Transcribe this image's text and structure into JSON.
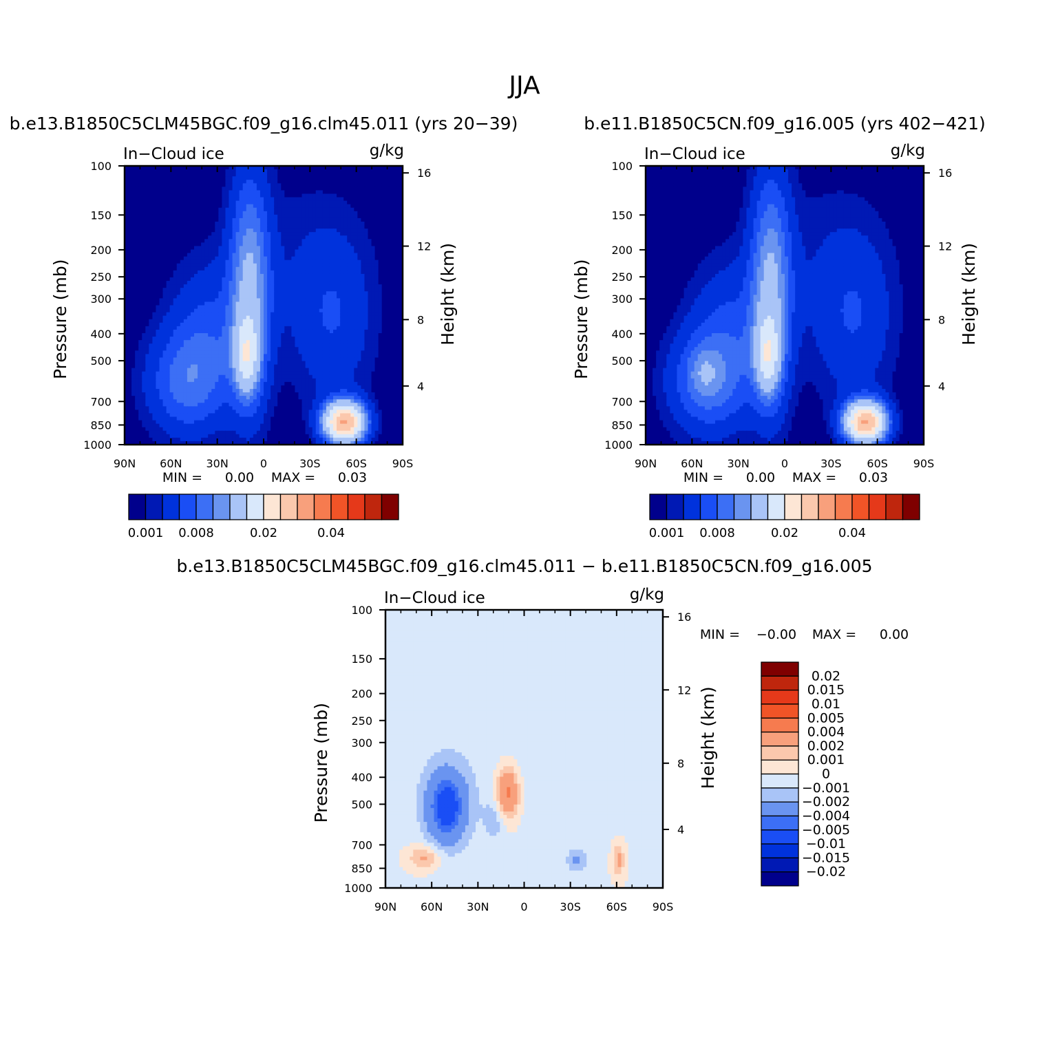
{
  "page_title": "JJA",
  "colors": {
    "seq": [
      "#00008c",
      "#0019b4",
      "#0032dc",
      "#1a4ef5",
      "#3c6ff5",
      "#6a94f0",
      "#a9c4f7",
      "#d9e8fb",
      "#fde6d5",
      "#fbc8ad",
      "#f8a07c",
      "#f67b4f",
      "#f15427",
      "#e5391a",
      "#bf260d",
      "#7f0000"
    ],
    "div": [
      "#00008c",
      "#0019b4",
      "#0032dc",
      "#1a4ef5",
      "#3c6ff5",
      "#6a94f0",
      "#a9c4f7",
      "#d9e8fb",
      "#fde6d5",
      "#fbc8ad",
      "#f8a07c",
      "#f67b4f",
      "#f15427",
      "#e5391a",
      "#bf260d",
      "#7f0000"
    ]
  },
  "chart_data": [
    {
      "id": "panel1",
      "type": "contour",
      "title": "b.e13.B1850C5CLM45BGC.f09_g16.clm45.011 (yrs 20−39)",
      "variable": "In−Cloud ice",
      "units": "g/kg",
      "ylabel": "Pressure (mb)",
      "y2label": "Height (km)",
      "xticks": [
        "90N",
        "60N",
        "30N",
        "0",
        "30S",
        "60S",
        "90S"
      ],
      "yticks": [
        "100",
        "150",
        "200",
        "250",
        "300",
        "400",
        "500",
        "700",
        "850",
        "1000"
      ],
      "y2ticks": [
        "16",
        "12",
        "8",
        "4"
      ],
      "min_label": "MIN =",
      "min_value": "0.00",
      "max_label": "MAX =",
      "max_value": "0.03",
      "colorbar_labels": [
        "0.001",
        "0.008",
        "0.02",
        "0.04"
      ]
    },
    {
      "id": "panel2",
      "type": "contour",
      "title": "b.e11.B1850C5CN.f09_g16.005 (yrs 402−421)",
      "variable": "In−Cloud ice",
      "units": "g/kg",
      "ylabel": "Pressure (mb)",
      "y2label": "Height (km)",
      "xticks": [
        "90N",
        "60N",
        "30N",
        "0",
        "30S",
        "60S",
        "90S"
      ],
      "yticks": [
        "100",
        "150",
        "200",
        "250",
        "300",
        "400",
        "500",
        "700",
        "850",
        "1000"
      ],
      "y2ticks": [
        "16",
        "12",
        "8",
        "4"
      ],
      "min_label": "MIN =",
      "min_value": "0.00",
      "max_label": "MAX =",
      "max_value": "0.03",
      "colorbar_labels": [
        "0.001",
        "0.008",
        "0.02",
        "0.04"
      ]
    },
    {
      "id": "panel3",
      "type": "contour",
      "title": "b.e13.B1850C5CLM45BGC.f09_g16.clm45.011 − b.e11.B1850C5CN.f09_g16.005",
      "variable": "In−Cloud ice",
      "units": "g/kg",
      "ylabel": "Pressure (mb)",
      "y2label": "Height (km)",
      "xticks": [
        "90N",
        "60N",
        "30N",
        "0",
        "30S",
        "60S",
        "90S"
      ],
      "yticks": [
        "100",
        "150",
        "200",
        "250",
        "300",
        "400",
        "500",
        "700",
        "850",
        "1000"
      ],
      "y2ticks": [
        "16",
        "12",
        "8",
        "4"
      ],
      "min_label": "MIN =",
      "min_value": "−0.00",
      "max_label": "MAX =",
      "max_value": "0.00",
      "colorbar_labels": [
        "0.02",
        "0.015",
        "0.01",
        "0.005",
        "0.004",
        "0.002",
        "0.001",
        "0",
        "−0.001",
        "−0.002",
        "−0.004",
        "−0.005",
        "−0.01",
        "−0.015",
        "−0.02"
      ]
    }
  ]
}
